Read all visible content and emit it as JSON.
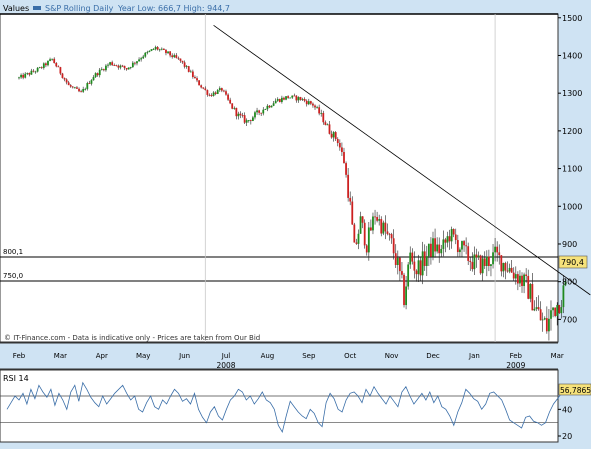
{
  "header": {
    "values_label": "Values",
    "series_label": "S&P Rolling Daily",
    "year_low_high": "Year Low: 666,7 High: 944,7"
  },
  "footer_note": "© IT-Finance.com - Data is indicative only - Prices are taken from Our Bid",
  "colors": {
    "background": "#cfe3f3",
    "plot_bg": "#ffffff",
    "candle_up": "#1e8a1e",
    "candle_down": "#cc2020",
    "rsi_line": "#3a6ea8",
    "price_box": "#f6e27a"
  },
  "levels": [
    {
      "value": 800.1,
      "label": "800,1"
    },
    {
      "value": 750.0,
      "label": "750,0"
    }
  ],
  "current_price_label": "790,4",
  "rsi_value_label": "56,7865",
  "chart_data": [
    {
      "type": "candlestick",
      "title": "S&P Rolling Daily",
      "ylim": [
        640,
        1510
      ],
      "yticks": [
        700,
        800,
        900,
        1000,
        1100,
        1200,
        1300,
        1400,
        1500
      ],
      "ytick_labels": [
        "700",
        "800",
        "900",
        "1000",
        "1100",
        "1200",
        "1300",
        "1400",
        "1500"
      ],
      "months": [
        "Feb",
        "Mar",
        "Apr",
        "May",
        "Jun",
        "Jul",
        "Aug",
        "Sep",
        "Oct",
        "Nov",
        "Dec",
        "Jan",
        "Feb",
        "Mar"
      ],
      "years": [
        {
          "label": "2008",
          "month_index": 5
        },
        {
          "label": "2009",
          "month_index": 12
        }
      ],
      "grid": true,
      "trendline": {
        "from": {
          "month": 4.7,
          "value": 1480
        },
        "to": {
          "month": 13.8,
          "value": 765
        }
      },
      "anchors": [
        [
          0.0,
          1340
        ],
        [
          0.5,
          1365
        ],
        [
          0.8,
          1390
        ],
        [
          1.2,
          1320
        ],
        [
          1.5,
          1300
        ],
        [
          1.8,
          1345
        ],
        [
          2.2,
          1380
        ],
        [
          2.6,
          1365
        ],
        [
          3.0,
          1400
        ],
        [
          3.3,
          1420
        ],
        [
          3.6,
          1405
        ],
        [
          3.9,
          1385
        ],
        [
          4.1,
          1360
        ],
        [
          4.3,
          1330
        ],
        [
          4.6,
          1295
        ],
        [
          4.9,
          1310
        ],
        [
          5.1,
          1270
        ],
        [
          5.3,
          1240
        ],
        [
          5.5,
          1225
        ],
        [
          5.8,
          1250
        ],
        [
          6.2,
          1280
        ],
        [
          6.5,
          1290
        ],
        [
          6.8,
          1285
        ],
        [
          7.1,
          1270
        ],
        [
          7.3,
          1240
        ],
        [
          7.5,
          1200
        ],
        [
          7.7,
          1175
        ],
        [
          7.85,
          1120
        ],
        [
          8.0,
          1000
        ],
        [
          8.1,
          880
        ],
        [
          8.25,
          960
        ],
        [
          8.4,
          900
        ],
        [
          8.6,
          980
        ],
        [
          8.8,
          940
        ],
        [
          9.0,
          900
        ],
        [
          9.15,
          840
        ],
        [
          9.3,
          760
        ],
        [
          9.45,
          870
        ],
        [
          9.6,
          830
        ],
        [
          9.8,
          860
        ],
        [
          10.0,
          895
        ],
        [
          10.2,
          880
        ],
        [
          10.4,
          925
        ],
        [
          10.6,
          900
        ],
        [
          10.8,
          870
        ],
        [
          11.0,
          850
        ],
        [
          11.2,
          845
        ],
        [
          11.5,
          870
        ],
        [
          11.7,
          850
        ],
        [
          11.9,
          830
        ],
        [
          12.1,
          810
        ],
        [
          12.3,
          780
        ],
        [
          12.45,
          740
        ],
        [
          12.6,
          700
        ],
        [
          12.75,
          680
        ],
        [
          12.9,
          730
        ],
        [
          13.0,
          740
        ],
        [
          13.1,
          760
        ],
        [
          13.2,
          790
        ]
      ]
    },
    {
      "type": "line",
      "title": "RSI 14",
      "ylim": [
        17,
        68
      ],
      "yticks": [
        20,
        40
      ],
      "ytick_labels": [
        "20",
        "40"
      ],
      "reference_lines": [
        30,
        50
      ],
      "values": [
        40,
        45,
        50,
        47,
        52,
        44,
        55,
        48,
        58,
        53,
        49,
        55,
        43,
        52,
        47,
        40,
        53,
        58,
        46,
        60,
        55,
        49,
        45,
        42,
        50,
        44,
        48,
        52,
        55,
        58,
        52,
        47,
        50,
        40,
        38,
        45,
        50,
        42,
        40,
        47,
        44,
        50,
        55,
        52,
        46,
        48,
        44,
        52,
        40,
        34,
        30,
        38,
        42,
        35,
        32,
        40,
        47,
        50,
        55,
        53,
        47,
        50,
        44,
        48,
        53,
        47,
        45,
        40,
        28,
        23,
        35,
        46,
        42,
        38,
        35,
        33,
        40,
        37,
        30,
        27,
        45,
        52,
        48,
        40,
        38,
        47,
        52,
        53,
        50,
        45,
        55,
        50,
        57,
        52,
        48,
        44,
        50,
        46,
        42,
        53,
        57,
        50,
        44,
        48,
        52,
        47,
        53,
        45,
        50,
        42,
        40,
        35,
        28,
        38,
        45,
        55,
        52,
        48,
        46,
        40,
        44,
        52,
        53,
        50,
        47,
        40,
        32,
        30,
        28,
        26,
        34,
        35,
        31,
        30,
        28,
        30,
        38,
        44,
        48,
        52,
        56
      ]
    }
  ]
}
